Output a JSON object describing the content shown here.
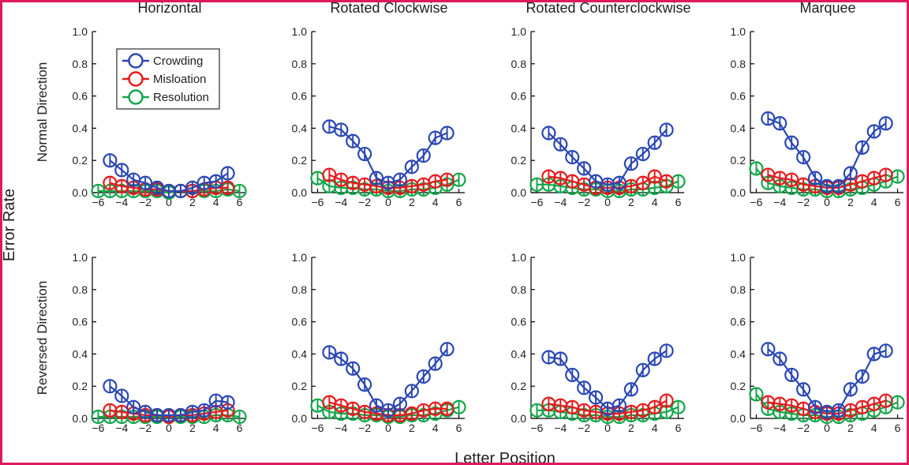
{
  "colors": {
    "frame": "#e0195f",
    "crowding": "#2a47b5",
    "misloation": "#e8191c",
    "resolution": "#12a64a",
    "axis": "#000000"
  },
  "figure": {
    "ylabel": "Error Rate",
    "xlabel": "Letter Position"
  },
  "row_labels": [
    "Normal Direction",
    "Reversed Direction"
  ],
  "col_titles": [
    "Horizontal",
    "Rotated Clockwise",
    "Rotated Counterclockwise",
    "Marquee"
  ],
  "legend": [
    "Crowding",
    "Misloation",
    "Resolution"
  ],
  "chart_data": {
    "type": "scatter",
    "x_ticks": [
      "−6",
      "−4",
      "−2",
      "0",
      "2",
      "4",
      "6"
    ],
    "y_ticks": [
      "0.0",
      "0.2",
      "0.4",
      "0.6",
      "0.8",
      "1.0"
    ],
    "xlim": [
      -6.5,
      6.5
    ],
    "ylim": [
      0,
      1
    ],
    "series_names": [
      "Crowding",
      "Misloation",
      "Resolution"
    ],
    "panels": [
      {
        "row": "Normal Direction",
        "col": "Horizontal",
        "series": [
          {
            "name": "Crowding",
            "x": [
              -5,
              -4,
              -3,
              -2,
              -1,
              0,
              1,
              2,
              3,
              4,
              5
            ],
            "y": [
              0.2,
              0.14,
              0.08,
              0.06,
              0.03,
              0.01,
              0.01,
              0.03,
              0.06,
              0.07,
              0.12
            ]
          },
          {
            "name": "Misloation",
            "x": [
              -5,
              -4,
              -3,
              -2,
              -1,
              0,
              1,
              2,
              3,
              4,
              5
            ],
            "y": [
              0.06,
              0.04,
              0.03,
              0.02,
              0.02,
              0.01,
              0.01,
              0.01,
              0.02,
              0.03,
              0.03
            ]
          },
          {
            "name": "Resolution",
            "x": [
              -6,
              -5,
              -4,
              -3,
              -2,
              -1,
              0,
              1,
              2,
              3,
              4,
              5,
              6
            ],
            "y": [
              0.01,
              0.01,
              0.01,
              0.01,
              0.01,
              0.01,
              0.0,
              0.01,
              0.01,
              0.01,
              0.01,
              0.02,
              0.01
            ]
          }
        ]
      },
      {
        "row": "Normal Direction",
        "col": "Rotated Clockwise",
        "series": [
          {
            "name": "Crowding",
            "x": [
              -5,
              -4,
              -3,
              -2,
              -1,
              0,
              1,
              2,
              3,
              4,
              5
            ],
            "y": [
              0.41,
              0.39,
              0.32,
              0.24,
              0.09,
              0.06,
              0.08,
              0.16,
              0.23,
              0.34,
              0.37
            ]
          },
          {
            "name": "Misloation",
            "x": [
              -5,
              -4,
              -3,
              -2,
              -1,
              0,
              1,
              2,
              3,
              4,
              5
            ],
            "y": [
              0.11,
              0.08,
              0.06,
              0.05,
              0.04,
              0.03,
              0.03,
              0.04,
              0.05,
              0.07,
              0.08
            ]
          },
          {
            "name": "Resolution",
            "x": [
              -6,
              -5,
              -4,
              -3,
              -2,
              -1,
              0,
              1,
              2,
              3,
              4,
              5,
              6
            ],
            "y": [
              0.09,
              0.04,
              0.03,
              0.03,
              0.02,
              0.02,
              0.01,
              0.01,
              0.02,
              0.02,
              0.03,
              0.05,
              0.08
            ]
          }
        ]
      },
      {
        "row": "Normal Direction",
        "col": "Rotated Counterclockwise",
        "series": [
          {
            "name": "Crowding",
            "x": [
              -5,
              -4,
              -3,
              -2,
              -1,
              0,
              1,
              2,
              3,
              4,
              5
            ],
            "y": [
              0.37,
              0.3,
              0.22,
              0.15,
              0.07,
              0.05,
              0.06,
              0.18,
              0.24,
              0.31,
              0.39
            ]
          },
          {
            "name": "Misloation",
            "x": [
              -5,
              -4,
              -3,
              -2,
              -1,
              0,
              1,
              2,
              3,
              4,
              5
            ],
            "y": [
              0.1,
              0.09,
              0.07,
              0.05,
              0.03,
              0.03,
              0.03,
              0.04,
              0.06,
              0.1,
              0.07
            ]
          },
          {
            "name": "Resolution",
            "x": [
              -6,
              -5,
              -4,
              -3,
              -2,
              -1,
              0,
              1,
              2,
              3,
              4,
              5,
              6
            ],
            "y": [
              0.05,
              0.05,
              0.04,
              0.03,
              0.02,
              0.02,
              0.01,
              0.01,
              0.02,
              0.02,
              0.03,
              0.04,
              0.07
            ]
          }
        ]
      },
      {
        "row": "Normal Direction",
        "col": "Marquee",
        "series": [
          {
            "name": "Crowding",
            "x": [
              -5,
              -4,
              -3,
              -2,
              -1,
              0,
              1,
              2,
              3,
              4,
              5
            ],
            "y": [
              0.46,
              0.43,
              0.31,
              0.22,
              0.09,
              0.04,
              0.04,
              0.12,
              0.28,
              0.38,
              0.43
            ]
          },
          {
            "name": "Misloation",
            "x": [
              -5,
              -4,
              -3,
              -2,
              -1,
              0,
              1,
              2,
              3,
              4,
              5
            ],
            "y": [
              0.11,
              0.09,
              0.08,
              0.05,
              0.04,
              0.03,
              0.03,
              0.05,
              0.07,
              0.09,
              0.11
            ]
          },
          {
            "name": "Resolution",
            "x": [
              -6,
              -5,
              -4,
              -3,
              -2,
              -1,
              0,
              1,
              2,
              3,
              4,
              5,
              6
            ],
            "y": [
              0.15,
              0.06,
              0.04,
              0.03,
              0.02,
              0.02,
              0.01,
              0.01,
              0.02,
              0.03,
              0.05,
              0.07,
              0.1
            ]
          }
        ]
      },
      {
        "row": "Reversed Direction",
        "col": "Horizontal",
        "series": [
          {
            "name": "Crowding",
            "x": [
              -5,
              -4,
              -3,
              -2,
              -1,
              0,
              1,
              2,
              3,
              4,
              5
            ],
            "y": [
              0.2,
              0.14,
              0.07,
              0.04,
              0.02,
              0.02,
              0.02,
              0.04,
              0.05,
              0.11,
              0.1
            ]
          },
          {
            "name": "Misloation",
            "x": [
              -5,
              -4,
              -3,
              -2,
              -1,
              0,
              1,
              2,
              3,
              4,
              5
            ],
            "y": [
              0.05,
              0.04,
              0.03,
              0.02,
              0.02,
              0.01,
              0.02,
              0.02,
              0.03,
              0.04,
              0.05
            ]
          },
          {
            "name": "Resolution",
            "x": [
              -6,
              -5,
              -4,
              -3,
              -2,
              -1,
              0,
              1,
              2,
              3,
              4,
              5,
              6
            ],
            "y": [
              0.01,
              0.01,
              0.01,
              0.01,
              0.01,
              0.01,
              0.01,
              0.01,
              0.01,
              0.01,
              0.02,
              0.02,
              0.01
            ]
          }
        ]
      },
      {
        "row": "Reversed Direction",
        "col": "Rotated Clockwise",
        "series": [
          {
            "name": "Crowding",
            "x": [
              -5,
              -4,
              -3,
              -2,
              -1,
              0,
              1,
              2,
              3,
              4,
              5
            ],
            "y": [
              0.41,
              0.37,
              0.31,
              0.21,
              0.08,
              0.05,
              0.09,
              0.17,
              0.26,
              0.34,
              0.43
            ]
          },
          {
            "name": "Misloation",
            "x": [
              -5,
              -4,
              -3,
              -2,
              -1,
              0,
              1,
              2,
              3,
              4,
              5
            ],
            "y": [
              0.1,
              0.08,
              0.06,
              0.04,
              0.03,
              0.02,
              0.02,
              0.03,
              0.05,
              0.06,
              0.06
            ]
          },
          {
            "name": "Resolution",
            "x": [
              -6,
              -5,
              -4,
              -3,
              -2,
              -1,
              0,
              1,
              2,
              3,
              4,
              5,
              6
            ],
            "y": [
              0.08,
              0.04,
              0.03,
              0.03,
              0.02,
              0.02,
              0.01,
              0.01,
              0.02,
              0.02,
              0.03,
              0.05,
              0.07
            ]
          }
        ]
      },
      {
        "row": "Reversed Direction",
        "col": "Rotated Counterclockwise",
        "series": [
          {
            "name": "Crowding",
            "x": [
              -5,
              -4,
              -3,
              -2,
              -1,
              0,
              1,
              2,
              3,
              4,
              5
            ],
            "y": [
              0.38,
              0.37,
              0.27,
              0.19,
              0.13,
              0.06,
              0.08,
              0.18,
              0.3,
              0.37,
              0.42
            ]
          },
          {
            "name": "Misloation",
            "x": [
              -5,
              -4,
              -3,
              -2,
              -1,
              0,
              1,
              2,
              3,
              4,
              5
            ],
            "y": [
              0.09,
              0.08,
              0.07,
              0.05,
              0.04,
              0.03,
              0.03,
              0.04,
              0.05,
              0.07,
              0.11
            ]
          },
          {
            "name": "Resolution",
            "x": [
              -6,
              -5,
              -4,
              -3,
              -2,
              -1,
              0,
              1,
              2,
              3,
              4,
              5,
              6
            ],
            "y": [
              0.05,
              0.05,
              0.04,
              0.03,
              0.02,
              0.02,
              0.01,
              0.01,
              0.02,
              0.02,
              0.03,
              0.04,
              0.07
            ]
          }
        ]
      },
      {
        "row": "Reversed Direction",
        "col": "Marquee",
        "series": [
          {
            "name": "Crowding",
            "x": [
              -5,
              -4,
              -3,
              -2,
              -1,
              0,
              1,
              2,
              3,
              4,
              5
            ],
            "y": [
              0.43,
              0.37,
              0.27,
              0.18,
              0.07,
              0.04,
              0.05,
              0.18,
              0.26,
              0.4,
              0.42
            ]
          },
          {
            "name": "Misloation",
            "x": [
              -5,
              -4,
              -3,
              -2,
              -1,
              0,
              1,
              2,
              3,
              4,
              5
            ],
            "y": [
              0.1,
              0.09,
              0.08,
              0.06,
              0.04,
              0.03,
              0.03,
              0.05,
              0.07,
              0.09,
              0.11
            ]
          },
          {
            "name": "Resolution",
            "x": [
              -6,
              -5,
              -4,
              -3,
              -2,
              -1,
              0,
              1,
              2,
              3,
              4,
              5,
              6
            ],
            "y": [
              0.15,
              0.06,
              0.04,
              0.03,
              0.02,
              0.02,
              0.01,
              0.01,
              0.02,
              0.03,
              0.05,
              0.07,
              0.1
            ]
          }
        ]
      }
    ]
  }
}
